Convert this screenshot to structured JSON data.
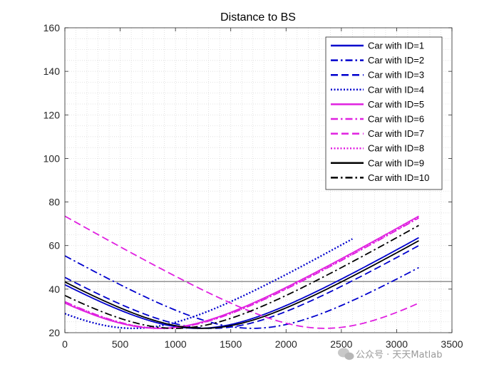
{
  "chart_data": {
    "type": "line",
    "title": "Distance to BS",
    "xlabel": "",
    "ylabel": "",
    "xlim": [
      0,
      3500
    ],
    "ylim": [
      20,
      160
    ],
    "xticks": [
      0,
      500,
      1000,
      1500,
      2000,
      2500,
      3000,
      3500
    ],
    "yticks": [
      20,
      40,
      60,
      80,
      100,
      120,
      140,
      160
    ],
    "grid": "minor-dotted",
    "legend_position": "top-right",
    "reference_line": {
      "y": 43.5,
      "color": "#262626"
    },
    "series": [
      {
        "name": "Car with ID=1",
        "color": "#0000CD",
        "dash": "solid",
        "width": 1.3,
        "x0": 1200,
        "a": 22,
        "b": 33.5,
        "xstart": 0,
        "xend": 3200
      },
      {
        "name": "Car with ID=2",
        "color": "#0000CD",
        "dash": "dashdot",
        "width": 1.3,
        "x0": 1700,
        "a": 22,
        "b": 33.5,
        "xstart": 0,
        "xend": 3200
      },
      {
        "name": "Car with ID=3",
        "color": "#0000CD",
        "dash": "dashed",
        "width": 1.3,
        "x0": 1330,
        "a": 22,
        "b": 33.5,
        "xstart": 0,
        "xend": 3200
      },
      {
        "name": "Car with ID=4",
        "color": "#0000CD",
        "dash": "dotted",
        "width": 1.3,
        "x0": 620,
        "a": 22,
        "b": 33.5,
        "xstart": 0,
        "xend": 2600
      },
      {
        "name": "Car with ID=5",
        "color": "#E020E0",
        "dash": "solid",
        "width": 1.3,
        "x0": 850,
        "a": 22,
        "b": 33.5,
        "xstart": 0,
        "xend": 3200
      },
      {
        "name": "Car with ID=6",
        "color": "#E020E0",
        "dash": "dashdot",
        "width": 1.3,
        "x0": 880,
        "a": 22,
        "b": 33.5,
        "xstart": 0,
        "xend": 3200
      },
      {
        "name": "Car with ID=7",
        "color": "#E020E0",
        "dash": "dashed",
        "width": 1.3,
        "x0": 2350,
        "a": 22,
        "b": 33.5,
        "xstart": 0,
        "xend": 3200
      },
      {
        "name": "Car with ID=8",
        "color": "#E020E0",
        "dash": "dotted",
        "width": 1.3,
        "x0": 870,
        "a": 22,
        "b": 33.5,
        "xstart": 0,
        "xend": 3200
      },
      {
        "name": "Car with ID=9",
        "color": "#000000",
        "dash": "solid",
        "width": 1.3,
        "x0": 1250,
        "a": 22,
        "b": 33.5,
        "xstart": 0,
        "xend": 3200
      },
      {
        "name": "Car with ID=10",
        "color": "#000000",
        "dash": "dashdot",
        "width": 1.3,
        "x0": 1000,
        "a": 22,
        "b": 33.5,
        "xstart": 0,
        "xend": 3200
      }
    ]
  },
  "watermark": {
    "text": "公众号 · 天天Matlab",
    "icon": "wechat-icon"
  }
}
